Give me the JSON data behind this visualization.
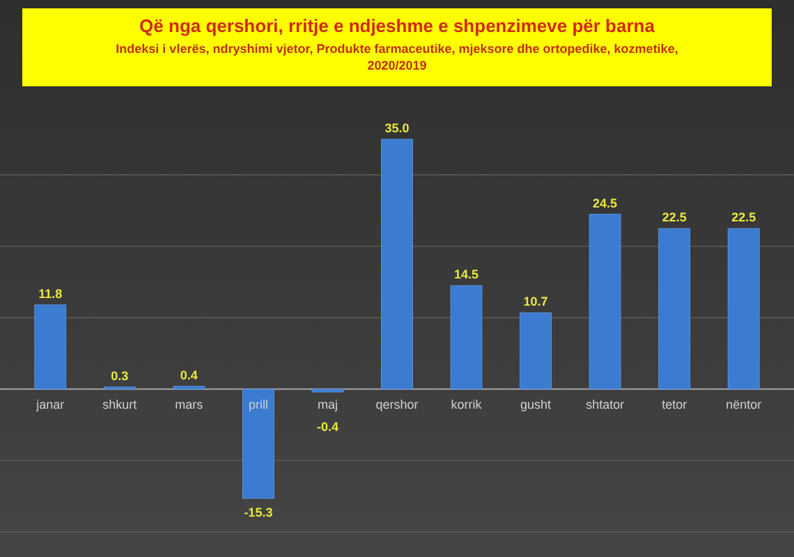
{
  "chart_data": {
    "type": "bar",
    "title": "Që nga qershori, rritje e ndjeshme e shpenzimeve për barna",
    "subtitle": "Indeksi i vlerës, ndryshimi vjetor, Produkte farmaceutike, mjeksore dhe ortopedike, kozmetike, 2020/2019",
    "categories": [
      "janar",
      "shkurt",
      "mars",
      "prill",
      "maj",
      "qershor",
      "korrik",
      "gusht",
      "shtator",
      "tetor",
      "nëntor"
    ],
    "values": [
      11.8,
      0.3,
      0.4,
      -15.3,
      -0.4,
      35.0,
      14.5,
      10.7,
      24.5,
      22.5,
      22.5
    ],
    "value_labels": [
      "11.8",
      "0.3",
      "0.4",
      "-15.3",
      "-0.4",
      "35.0",
      "14.5",
      "10.7",
      "24.5",
      "22.5",
      "22.5"
    ],
    "color": "#3b7bd0",
    "grid": "y",
    "tick_labels": "x",
    "yticks": [
      {
        "value": -20,
        "label": null
      },
      {
        "value": -10,
        "label": null
      },
      {
        "value": 0,
        "label": null
      },
      {
        "value": 10,
        "label": null
      },
      {
        "value": 20,
        "label": null
      },
      {
        "value": 30,
        "label": null
      }
    ]
  }
}
